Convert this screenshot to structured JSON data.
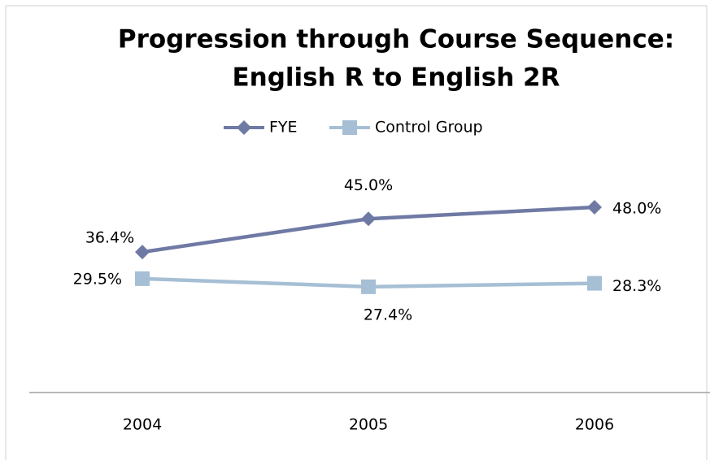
{
  "chart_data": {
    "type": "line",
    "title": [
      "Progression through Course Sequence:",
      "English R to English 2R"
    ],
    "categories": [
      "2004",
      "2005",
      "2006"
    ],
    "ylim": [
      0,
      60
    ],
    "legend": "top",
    "series": [
      {
        "name": "FYE",
        "color": "#6f7aa4",
        "marker": "diamond",
        "values": [
          36.4,
          45.0,
          48.0
        ],
        "value_labels": [
          "36.4%",
          "45.0%",
          "48.0%"
        ]
      },
      {
        "name": "Control Group",
        "color": "#a6bfd5",
        "marker": "square",
        "values": [
          29.5,
          27.4,
          28.3
        ],
        "value_labels": [
          "29.5%",
          "27.4%",
          "28.3%"
        ]
      }
    ]
  }
}
